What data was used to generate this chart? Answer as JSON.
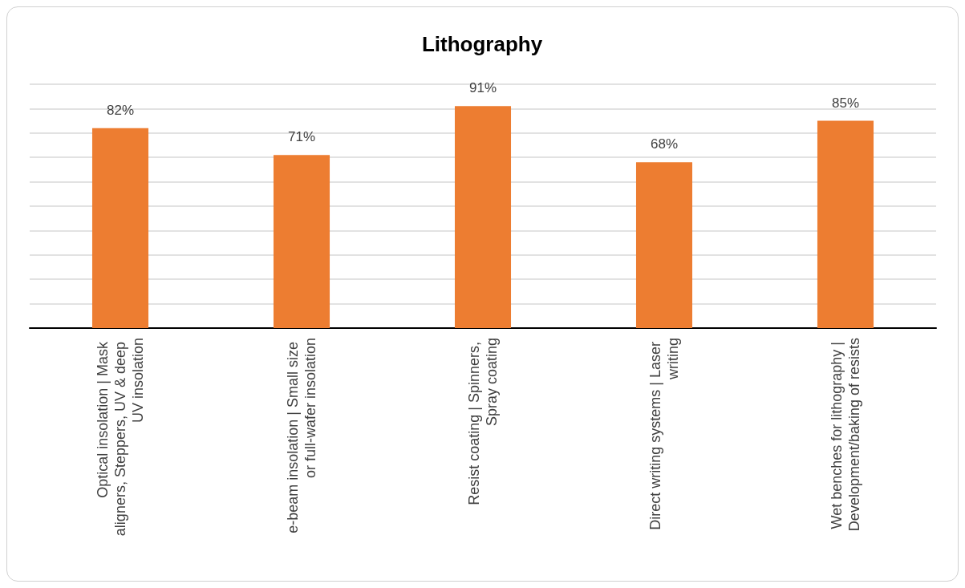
{
  "chart_data": {
    "type": "bar",
    "title": "Lithography",
    "categories": [
      "Optical insolation | Mask aligners, Steppers, UV & deep UV insolation",
      "e-beam insolation | Small size or full-wafer insolation",
      "Resist coating | Spinners, Spray coating",
      "Direct writing systems | Laser writing",
      "Wet benches for lithography | Development/baking of resists"
    ],
    "values": [
      82,
      71,
      91,
      68,
      85
    ],
    "value_labels": [
      "82%",
      "71%",
      "91%",
      "68%",
      "85%"
    ],
    "color": "#ed7d31",
    "ylim": [
      0,
      100
    ],
    "yticks": [
      {
        "value": 0,
        "label": null
      },
      {
        "value": 10,
        "label": null
      },
      {
        "value": 20,
        "label": null
      },
      {
        "value": 30,
        "label": null
      },
      {
        "value": 40,
        "label": null
      },
      {
        "value": 50,
        "label": null
      },
      {
        "value": 60,
        "label": null
      },
      {
        "value": 70,
        "label": null
      },
      {
        "value": 80,
        "label": null
      },
      {
        "value": 90,
        "label": null
      },
      {
        "value": 100,
        "label": null
      }
    ],
    "tick_labels": "x",
    "grid": "y"
  }
}
